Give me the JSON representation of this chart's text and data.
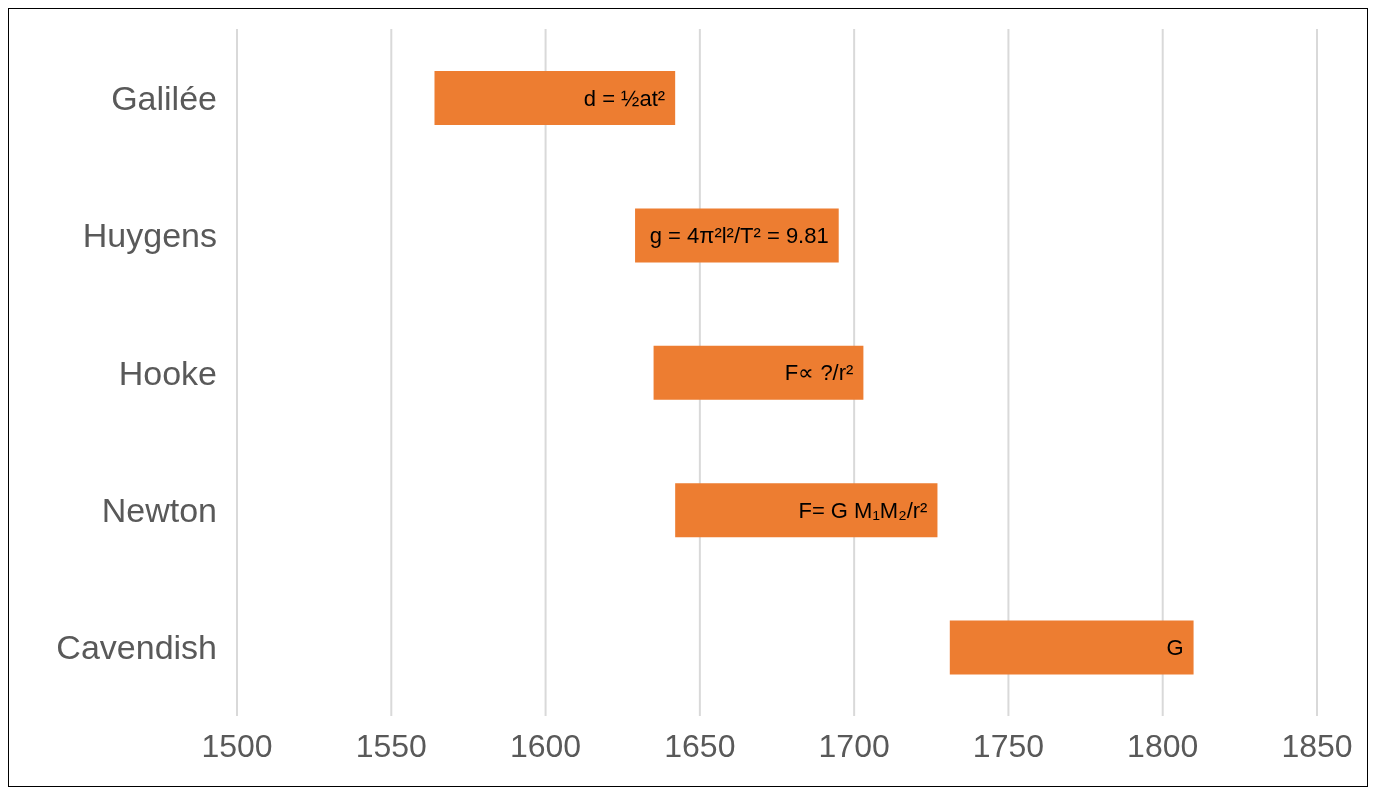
{
  "chart_data": {
    "type": "bar",
    "orientation": "horizontal",
    "categories": [
      "Galilée",
      "Huygens",
      "Hooke",
      "Newton",
      "Cavendish"
    ],
    "base": [
      1564,
      1629,
      1635,
      1642,
      1731
    ],
    "values": [
      78,
      66,
      68,
      85,
      79
    ],
    "color": "#ed7d31",
    "xlim": [
      1500,
      1850
    ],
    "xticks": [
      1500,
      1550,
      1600,
      1650,
      1700,
      1750,
      1800,
      1850
    ],
    "grid": "x",
    "annotations": [
      "d = ½at²",
      "g = 4π²l²/T² = 9.81",
      "F∝ ?/r²",
      "F= G M₁M₂/r²",
      "G"
    ]
  }
}
